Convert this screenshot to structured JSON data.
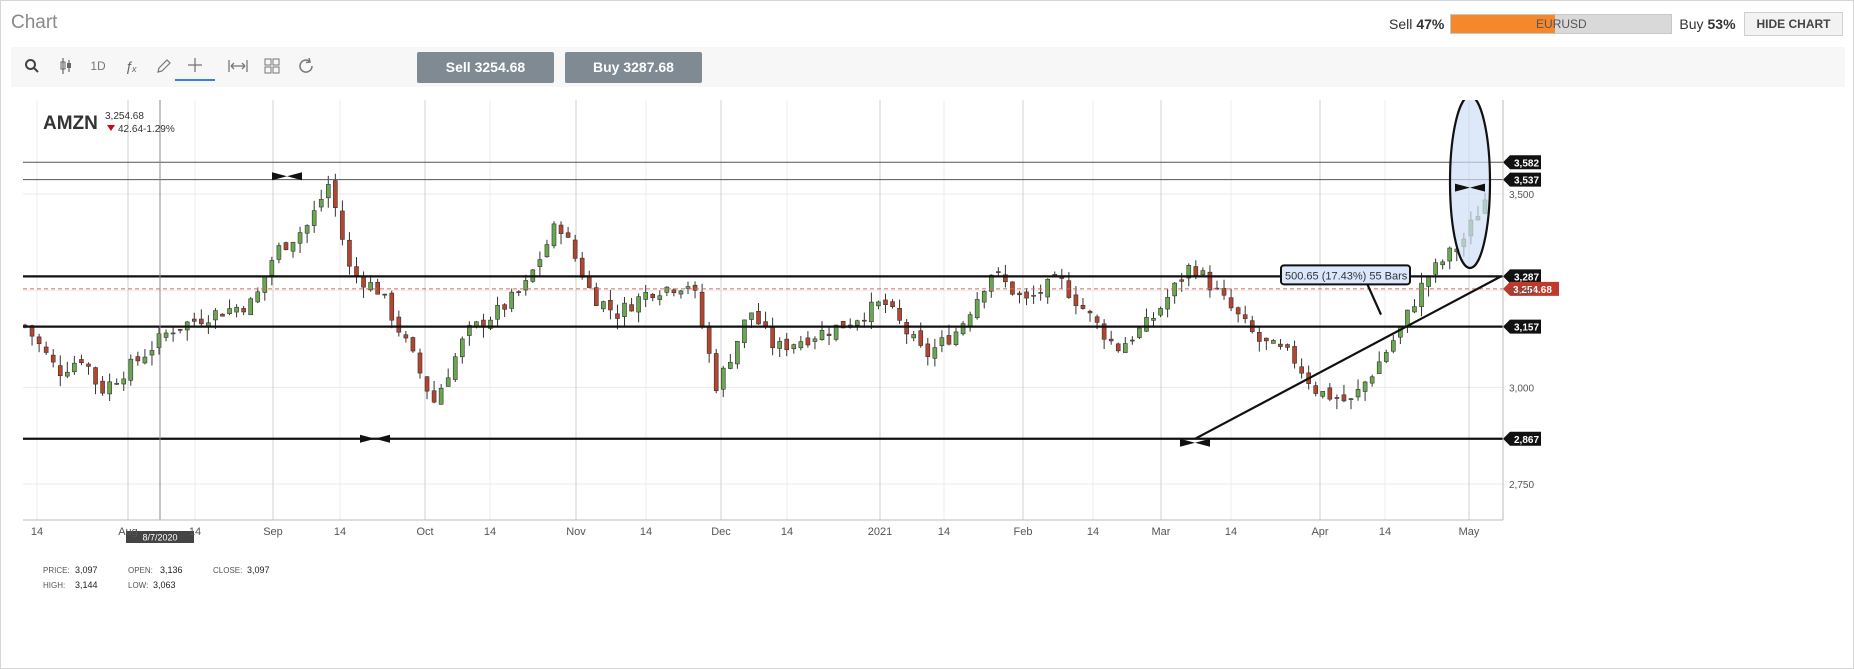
{
  "header": {
    "title": "Chart",
    "sentiment": {
      "sell_label": "Sell",
      "sell_pct": "47%",
      "sell_fraction": 0.47,
      "symbol": "EURUSD",
      "buy_label": "Buy",
      "buy_pct": "53%"
    },
    "hide_chart_label": "HIDE CHART"
  },
  "toolbar": {
    "tools": [
      {
        "name": "search-icon",
        "glyph": "⚲"
      },
      {
        "name": "candlestick-type-icon",
        "glyph": "⫶"
      },
      {
        "name": "interval-button",
        "glyph": "1D"
      },
      {
        "name": "indicators-icon",
        "glyph": "ƒx"
      },
      {
        "name": "draw-pencil-icon",
        "glyph": "✎"
      },
      {
        "name": "crosshair-icon",
        "glyph": "+"
      },
      {
        "name": "measure-icon",
        "glyph": "⇹"
      },
      {
        "name": "layout-grid-icon",
        "glyph": "▦"
      },
      {
        "name": "refresh-icon",
        "glyph": "↻"
      }
    ],
    "sell_button": "Sell 3254.68",
    "buy_button": "Buy 3287.68"
  },
  "colors": {
    "up": "#6aa84f",
    "down": "#b5452e",
    "accent": "#3b7fd6",
    "sell_orange": "#f4882b",
    "button_gray": "#7f8a93"
  },
  "chart_data": {
    "type": "candlestick",
    "symbol": "AMZN",
    "last_price": "3,254.68",
    "change": "42.64-1.29%",
    "ohlc_readout": {
      "price": "3,097",
      "open": "3,136",
      "close": "3,097",
      "high": "3,144",
      "low": "3,063"
    },
    "readout_labels": {
      "price": "PRICE:",
      "open": "OPEN:",
      "close": "CLOSE:",
      "high": "HIGH:",
      "low": "LOW:"
    },
    "x_ticks": [
      "14",
      "Aug",
      "14",
      "Sep",
      "14",
      "Oct",
      "14",
      "Nov",
      "14",
      "Dec",
      "14",
      "2021",
      "14",
      "Feb",
      "14",
      "Mar",
      "14",
      "Apr",
      "14",
      "May"
    ],
    "y_ticks": [
      3500,
      3250,
      3000,
      2750
    ],
    "y_tick_labels": [
      "3,500",
      "3,250",
      "3,000",
      "2,750"
    ],
    "ylim": [
      2657,
      3743
    ],
    "crosshair_date": "8/7/2020",
    "horizontal_levels": [
      {
        "value": 3582,
        "label": "3,582"
      },
      {
        "value": 3537,
        "label": "3,537"
      },
      {
        "value": 3287,
        "label": "3,287"
      },
      {
        "value": 3157,
        "label": "3,157"
      },
      {
        "value": 2867,
        "label": "2,867"
      }
    ],
    "current_price": {
      "value": 3254.68,
      "label": "3,254.68"
    },
    "measure_label": "500.65 (17.43%) 55 Bars",
    "candles": []
  }
}
